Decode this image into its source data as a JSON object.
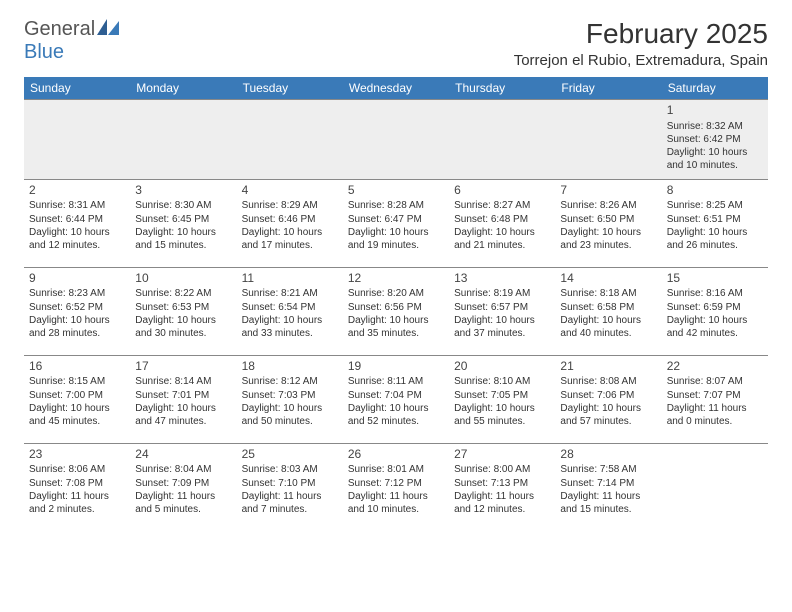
{
  "branding": {
    "logo_part1": "General",
    "logo_part2": "Blue",
    "logo_color_primary": "#3a7ab8",
    "logo_color_text": "#555555"
  },
  "header": {
    "month_title": "February 2025",
    "location": "Torrejon el Rubio, Extremadura, Spain"
  },
  "calendar": {
    "type": "table",
    "header_bg": "#3a7ab8",
    "header_fg": "#ffffff",
    "shaded_bg": "#eeeeee",
    "border_color": "#888888",
    "day_headers": [
      "Sunday",
      "Monday",
      "Tuesday",
      "Wednesday",
      "Thursday",
      "Friday",
      "Saturday"
    ],
    "weeks": [
      [
        null,
        null,
        null,
        null,
        null,
        null,
        {
          "n": "1",
          "sr": "Sunrise: 8:32 AM",
          "ss": "Sunset: 6:42 PM",
          "d1": "Daylight: 10 hours",
          "d2": "and 10 minutes."
        }
      ],
      [
        {
          "n": "2",
          "sr": "Sunrise: 8:31 AM",
          "ss": "Sunset: 6:44 PM",
          "d1": "Daylight: 10 hours",
          "d2": "and 12 minutes."
        },
        {
          "n": "3",
          "sr": "Sunrise: 8:30 AM",
          "ss": "Sunset: 6:45 PM",
          "d1": "Daylight: 10 hours",
          "d2": "and 15 minutes."
        },
        {
          "n": "4",
          "sr": "Sunrise: 8:29 AM",
          "ss": "Sunset: 6:46 PM",
          "d1": "Daylight: 10 hours",
          "d2": "and 17 minutes."
        },
        {
          "n": "5",
          "sr": "Sunrise: 8:28 AM",
          "ss": "Sunset: 6:47 PM",
          "d1": "Daylight: 10 hours",
          "d2": "and 19 minutes."
        },
        {
          "n": "6",
          "sr": "Sunrise: 8:27 AM",
          "ss": "Sunset: 6:48 PM",
          "d1": "Daylight: 10 hours",
          "d2": "and 21 minutes."
        },
        {
          "n": "7",
          "sr": "Sunrise: 8:26 AM",
          "ss": "Sunset: 6:50 PM",
          "d1": "Daylight: 10 hours",
          "d2": "and 23 minutes."
        },
        {
          "n": "8",
          "sr": "Sunrise: 8:25 AM",
          "ss": "Sunset: 6:51 PM",
          "d1": "Daylight: 10 hours",
          "d2": "and 26 minutes."
        }
      ],
      [
        {
          "n": "9",
          "sr": "Sunrise: 8:23 AM",
          "ss": "Sunset: 6:52 PM",
          "d1": "Daylight: 10 hours",
          "d2": "and 28 minutes."
        },
        {
          "n": "10",
          "sr": "Sunrise: 8:22 AM",
          "ss": "Sunset: 6:53 PM",
          "d1": "Daylight: 10 hours",
          "d2": "and 30 minutes."
        },
        {
          "n": "11",
          "sr": "Sunrise: 8:21 AM",
          "ss": "Sunset: 6:54 PM",
          "d1": "Daylight: 10 hours",
          "d2": "and 33 minutes."
        },
        {
          "n": "12",
          "sr": "Sunrise: 8:20 AM",
          "ss": "Sunset: 6:56 PM",
          "d1": "Daylight: 10 hours",
          "d2": "and 35 minutes."
        },
        {
          "n": "13",
          "sr": "Sunrise: 8:19 AM",
          "ss": "Sunset: 6:57 PM",
          "d1": "Daylight: 10 hours",
          "d2": "and 37 minutes."
        },
        {
          "n": "14",
          "sr": "Sunrise: 8:18 AM",
          "ss": "Sunset: 6:58 PM",
          "d1": "Daylight: 10 hours",
          "d2": "and 40 minutes."
        },
        {
          "n": "15",
          "sr": "Sunrise: 8:16 AM",
          "ss": "Sunset: 6:59 PM",
          "d1": "Daylight: 10 hours",
          "d2": "and 42 minutes."
        }
      ],
      [
        {
          "n": "16",
          "sr": "Sunrise: 8:15 AM",
          "ss": "Sunset: 7:00 PM",
          "d1": "Daylight: 10 hours",
          "d2": "and 45 minutes."
        },
        {
          "n": "17",
          "sr": "Sunrise: 8:14 AM",
          "ss": "Sunset: 7:01 PM",
          "d1": "Daylight: 10 hours",
          "d2": "and 47 minutes."
        },
        {
          "n": "18",
          "sr": "Sunrise: 8:12 AM",
          "ss": "Sunset: 7:03 PM",
          "d1": "Daylight: 10 hours",
          "d2": "and 50 minutes."
        },
        {
          "n": "19",
          "sr": "Sunrise: 8:11 AM",
          "ss": "Sunset: 7:04 PM",
          "d1": "Daylight: 10 hours",
          "d2": "and 52 minutes."
        },
        {
          "n": "20",
          "sr": "Sunrise: 8:10 AM",
          "ss": "Sunset: 7:05 PM",
          "d1": "Daylight: 10 hours",
          "d2": "and 55 minutes."
        },
        {
          "n": "21",
          "sr": "Sunrise: 8:08 AM",
          "ss": "Sunset: 7:06 PM",
          "d1": "Daylight: 10 hours",
          "d2": "and 57 minutes."
        },
        {
          "n": "22",
          "sr": "Sunrise: 8:07 AM",
          "ss": "Sunset: 7:07 PM",
          "d1": "Daylight: 11 hours",
          "d2": "and 0 minutes."
        }
      ],
      [
        {
          "n": "23",
          "sr": "Sunrise: 8:06 AM",
          "ss": "Sunset: 7:08 PM",
          "d1": "Daylight: 11 hours",
          "d2": "and 2 minutes."
        },
        {
          "n": "24",
          "sr": "Sunrise: 8:04 AM",
          "ss": "Sunset: 7:09 PM",
          "d1": "Daylight: 11 hours",
          "d2": "and 5 minutes."
        },
        {
          "n": "25",
          "sr": "Sunrise: 8:03 AM",
          "ss": "Sunset: 7:10 PM",
          "d1": "Daylight: 11 hours",
          "d2": "and 7 minutes."
        },
        {
          "n": "26",
          "sr": "Sunrise: 8:01 AM",
          "ss": "Sunset: 7:12 PM",
          "d1": "Daylight: 11 hours",
          "d2": "and 10 minutes."
        },
        {
          "n": "27",
          "sr": "Sunrise: 8:00 AM",
          "ss": "Sunset: 7:13 PM",
          "d1": "Daylight: 11 hours",
          "d2": "and 12 minutes."
        },
        {
          "n": "28",
          "sr": "Sunrise: 7:58 AM",
          "ss": "Sunset: 7:14 PM",
          "d1": "Daylight: 11 hours",
          "d2": "and 15 minutes."
        },
        null
      ]
    ]
  }
}
